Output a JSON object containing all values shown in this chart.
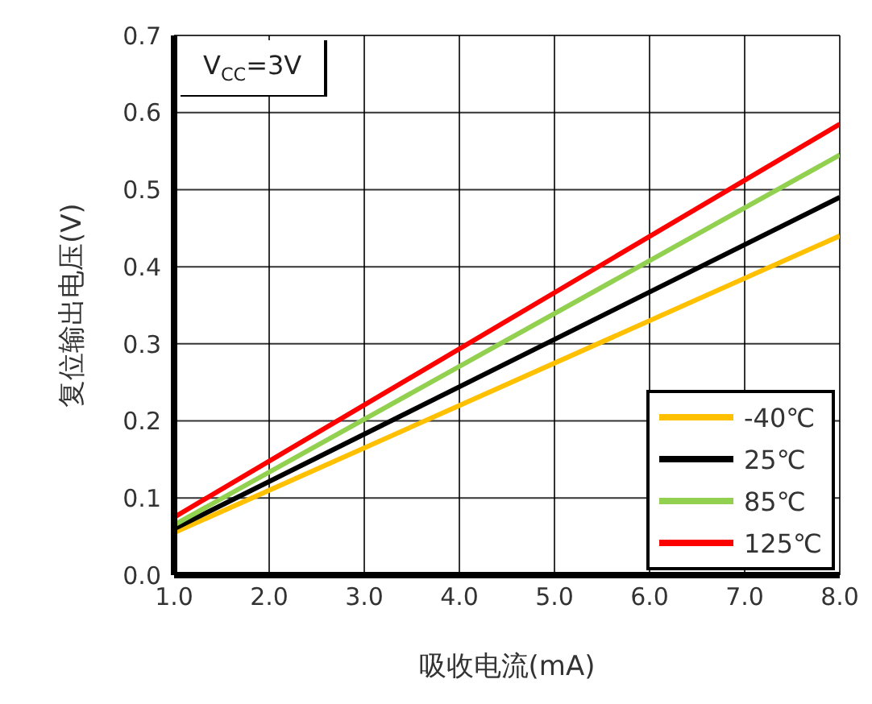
{
  "chart_data": {
    "type": "line",
    "title": "V$_{CC}$=3V",
    "xlabel": "吸收电流(mA)",
    "ylabel": "复位输出电压(V)",
    "x": [
      1,
      8
    ],
    "series": [
      {
        "name": "-40℃",
        "color": "#ffc000",
        "values": [
          0.055,
          0.44
        ]
      },
      {
        "name": "25℃",
        "color": "#000000",
        "values": [
          0.06,
          0.49
        ]
      },
      {
        "name": "85℃",
        "color": "#92d050",
        "values": [
          0.065,
          0.545
        ]
      },
      {
        "name": "125℃",
        "color": "#ff0000",
        "values": [
          0.075,
          0.585
        ]
      }
    ],
    "xlim": [
      1,
      8
    ],
    "xticks": [
      {
        "value": 1,
        "label": "1.0"
      },
      {
        "value": 2,
        "label": "2.0"
      },
      {
        "value": 3,
        "label": "3.0"
      },
      {
        "value": 4,
        "label": "4.0"
      },
      {
        "value": 5,
        "label": "5.0"
      },
      {
        "value": 6,
        "label": "6.0"
      },
      {
        "value": 7,
        "label": "7.0"
      },
      {
        "value": 8,
        "label": "8.0"
      }
    ],
    "ylim": [
      0,
      0.7
    ],
    "yticks": [
      {
        "value": 0,
        "label": "0.0"
      },
      0.1,
      0.2,
      0.3,
      0.4,
      0.5,
      0.6,
      0.7
    ],
    "grid": true,
    "legend": "bottom right",
    "marker": "none",
    "line_style": "solid"
  }
}
